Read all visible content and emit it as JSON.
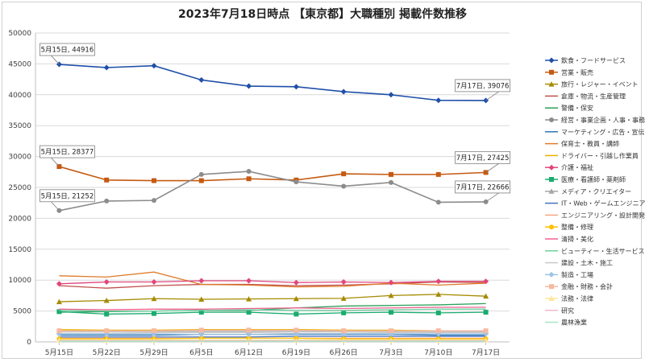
{
  "chart_data": {
    "type": "line",
    "title": "2023年7月18日時点 【東京都】大職種別 掲載件数推移",
    "xlabel": "",
    "ylabel": "",
    "ylim": [
      0,
      50000
    ],
    "yticks": [
      0,
      5000,
      10000,
      15000,
      20000,
      25000,
      30000,
      35000,
      40000,
      45000,
      50000
    ],
    "grid": true,
    "legend": "right",
    "categories": [
      "5月15日",
      "5月22日",
      "5月29日",
      "6月5日",
      "6月12日",
      "6月19日",
      "6月26日",
      "7月3日",
      "7月10日",
      "7月17日"
    ],
    "series": [
      {
        "name": "飲食・フードサービス",
        "color": "#1f4fa8",
        "marker": "diamond",
        "values": [
          44916,
          44400,
          44700,
          42400,
          41400,
          41300,
          40500,
          40000,
          39100,
          39076
        ]
      },
      {
        "name": "営業・販売",
        "color": "#c55a11",
        "marker": "square",
        "values": [
          28377,
          26200,
          26100,
          26100,
          26400,
          26200,
          27200,
          27100,
          27100,
          27425
        ]
      },
      {
        "name": "旅行・レジャー・イベント",
        "color": "#a58a00",
        "marker": "triangle",
        "values": [
          6500,
          6700,
          7000,
          6900,
          6950,
          7000,
          7050,
          7500,
          7700,
          7400
        ]
      },
      {
        "name": "倉庫・物流・生産管理",
        "color": "#c0504d",
        "marker": "none",
        "values": [
          9100,
          8700,
          9100,
          9300,
          9300,
          9100,
          9200,
          9400,
          9700,
          9600
        ]
      },
      {
        "name": "警備・保安",
        "color": "#2ca05a",
        "marker": "none",
        "values": [
          4800,
          4900,
          5000,
          5100,
          5100,
          5500,
          5800,
          5900,
          6000,
          6200
        ]
      },
      {
        "name": "経営・事業企画・人事・事務",
        "color": "#8c8c8c",
        "marker": "circle",
        "values": [
          21252,
          22800,
          22900,
          27100,
          27600,
          25900,
          25200,
          25800,
          22600,
          22666
        ]
      },
      {
        "name": "マーケティング・広告・宣伝",
        "color": "#2e75b6",
        "marker": "none",
        "values": [
          1100,
          1100,
          1100,
          1200,
          1200,
          1200,
          1200,
          1200,
          1100,
          1100
        ]
      },
      {
        "name": "保育士・教員・講師",
        "color": "#e07b2a",
        "marker": "none",
        "values": [
          10700,
          10500,
          11300,
          9300,
          9200,
          8900,
          9000,
          9500,
          9200,
          9500
        ]
      },
      {
        "name": "ドライバー・引越し作業員",
        "color": "#e8b000",
        "marker": "none",
        "values": [
          2000,
          1900,
          1900,
          2000,
          2000,
          2000,
          1900,
          1900,
          1800,
          1800
        ]
      },
      {
        "name": "介護・福祉",
        "color": "#e0457b",
        "marker": "diamond",
        "values": [
          9400,
          9700,
          9700,
          9900,
          9900,
          9600,
          9700,
          9600,
          9800,
          9800
        ]
      },
      {
        "name": "医療・看護師・薬剤師",
        "color": "#1aab6e",
        "marker": "square",
        "values": [
          4900,
          4500,
          4600,
          4800,
          4800,
          4500,
          4700,
          4800,
          4700,
          4800
        ]
      },
      {
        "name": "メディア・クリエイター",
        "color": "#a6a6a6",
        "marker": "triangle",
        "values": [
          1700,
          1700,
          1700,
          1700,
          1700,
          1700,
          1700,
          1700,
          1700,
          1700
        ]
      },
      {
        "name": "IT・Web・ゲームエンジニア",
        "color": "#4472c4",
        "marker": "none",
        "values": [
          800,
          800,
          800,
          800,
          800,
          900,
          900,
          900,
          900,
          900
        ]
      },
      {
        "name": "エンジニアリング・設計開発",
        "color": "#f4a582",
        "marker": "none",
        "values": [
          600,
          600,
          600,
          600,
          600,
          600,
          600,
          600,
          600,
          600
        ]
      },
      {
        "name": "整備・修理",
        "color": "#ffc000",
        "marker": "circle",
        "values": [
          500,
          500,
          500,
          600,
          600,
          600,
          500,
          500,
          500,
          500
        ]
      },
      {
        "name": "清掃・美化",
        "color": "#f06090",
        "marker": "none",
        "values": [
          5300,
          5200,
          5300,
          5300,
          5400,
          5500,
          5400,
          5500,
          5600,
          5600
        ]
      },
      {
        "name": "ビューティー・生活サービス",
        "color": "#70d0a0",
        "marker": "none",
        "values": [
          5100,
          5000,
          5000,
          5100,
          5200,
          5100,
          5100,
          5200,
          5300,
          5300
        ]
      },
      {
        "name": "建設・土木・施工",
        "color": "#c8c8c8",
        "marker": "none",
        "values": [
          1400,
          1400,
          1500,
          1500,
          1500,
          1400,
          1400,
          1500,
          1500,
          1500
        ]
      },
      {
        "name": "製造・工場",
        "color": "#9dc3e6",
        "marker": "diamond",
        "values": [
          1300,
          1300,
          1300,
          1200,
          1200,
          1300,
          1300,
          1300,
          1300,
          1300
        ]
      },
      {
        "name": "金融・財務・会計",
        "color": "#f8b8a0",
        "marker": "square",
        "values": [
          1800,
          1800,
          1800,
          1900,
          1900,
          1900,
          1800,
          1800,
          1800,
          1800
        ]
      },
      {
        "name": "法務・法律",
        "color": "#ffe699",
        "marker": "triangle",
        "values": [
          300,
          300,
          300,
          300,
          300,
          300,
          300,
          300,
          300,
          300
        ]
      },
      {
        "name": "研究",
        "color": "#f4b6c8",
        "marker": "none",
        "values": [
          200,
          200,
          200,
          200,
          200,
          200,
          200,
          200,
          200,
          200
        ]
      },
      {
        "name": "農林漁業",
        "color": "#a9e4c4",
        "marker": "none",
        "values": [
          100,
          100,
          100,
          100,
          100,
          100,
          100,
          100,
          100,
          100
        ]
      }
    ],
    "annotations": [
      {
        "text": "5月15日, 44916",
        "series": 0,
        "point": 0,
        "side": "left"
      },
      {
        "text": "7月17日, 39076",
        "series": 0,
        "point": 9,
        "side": "right"
      },
      {
        "text": "5月15日, 28377",
        "series": 1,
        "point": 0,
        "side": "left"
      },
      {
        "text": "7月17日, 27425",
        "series": 1,
        "point": 9,
        "side": "right"
      },
      {
        "text": "5月15日, 21252",
        "series": 5,
        "point": 0,
        "side": "left"
      },
      {
        "text": "7月17日, 22666",
        "series": 5,
        "point": 9,
        "side": "right"
      }
    ]
  }
}
